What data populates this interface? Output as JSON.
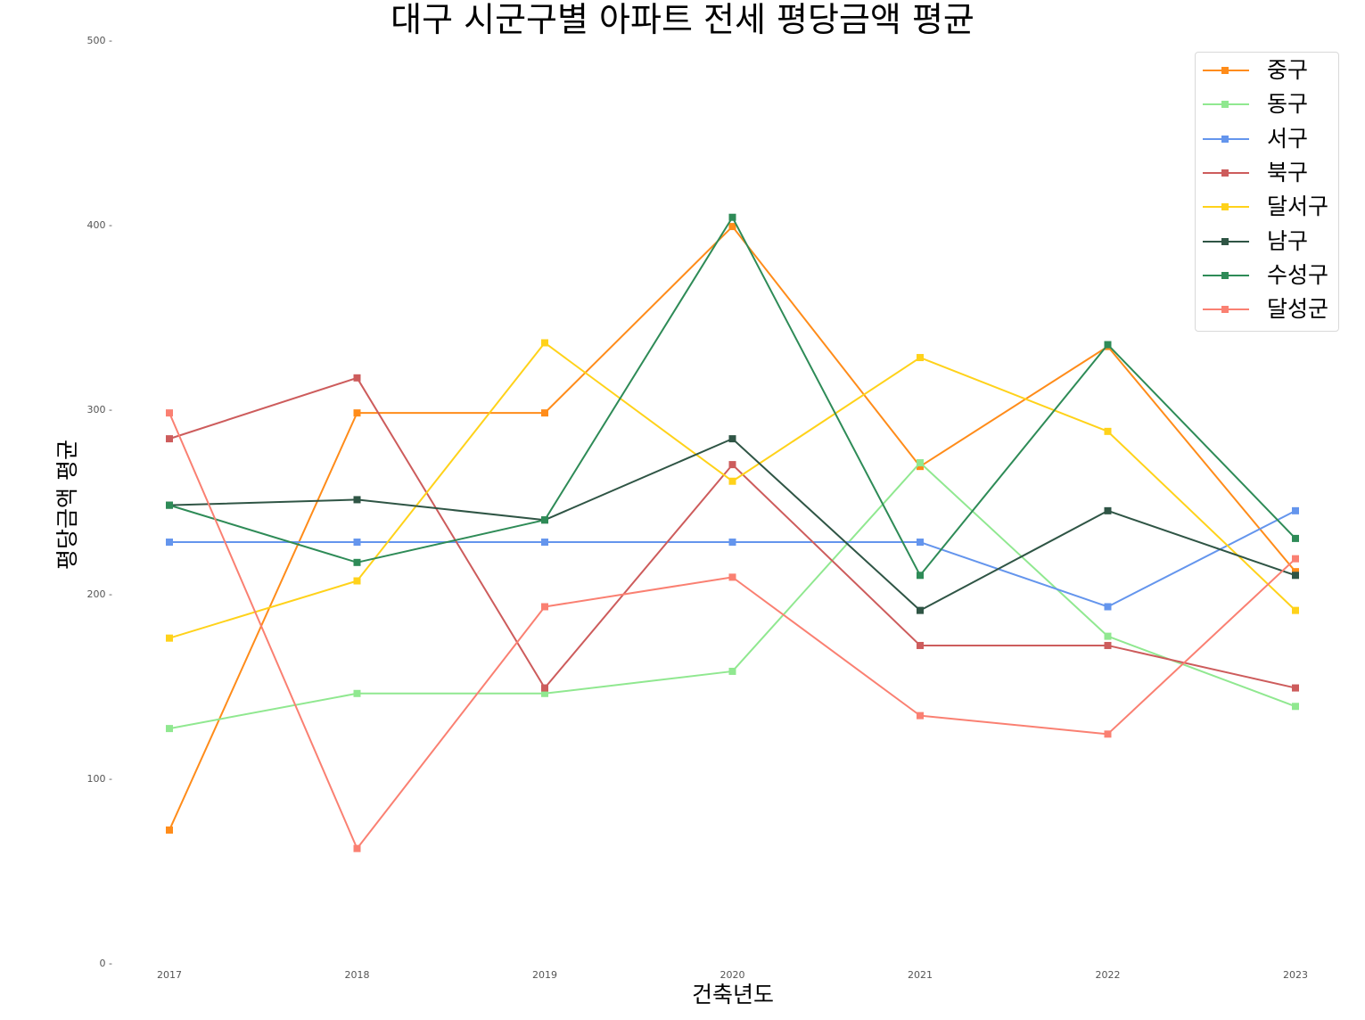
{
  "chart_data": {
    "type": "line",
    "title": "대구 시군구별 아파트 전세 평당금액 평균",
    "xlabel": "건축년도",
    "ylabel": "평당금액 평균",
    "x": [
      2017,
      2018,
      2019,
      2020,
      2021,
      2022,
      2023
    ],
    "xtick_labels": [
      "2017",
      "2018",
      "2019",
      "2020",
      "2021",
      "2022",
      "2023"
    ],
    "yticks": [
      0,
      100,
      200,
      300,
      400,
      500
    ],
    "ytick_labels": [
      "0 -",
      "100 -",
      "200 -",
      "300 -",
      "400 -",
      "500 -"
    ],
    "ylim": [
      0,
      500
    ],
    "grid": false,
    "legend_position": "top-right",
    "series": [
      {
        "name": "중구",
        "color": "#ff8c1a",
        "values": [
          72,
          298,
          298,
          399,
          269,
          334,
          212
        ]
      },
      {
        "name": "동구",
        "color": "#90e890",
        "values": [
          127,
          146,
          146,
          158,
          271,
          177,
          139
        ]
      },
      {
        "name": "서구",
        "color": "#6495ed",
        "values": [
          228,
          228,
          228,
          228,
          228,
          193,
          245
        ]
      },
      {
        "name": "북구",
        "color": "#cd5c5c",
        "values": [
          284,
          317,
          149,
          270,
          172,
          172,
          149
        ]
      },
      {
        "name": "달서구",
        "color": "#ffd21a",
        "values": [
          176,
          207,
          336,
          261,
          328,
          288,
          191
        ]
      },
      {
        "name": "남구",
        "color": "#2f5545",
        "values": [
          248,
          251,
          240,
          284,
          191,
          245,
          210
        ]
      },
      {
        "name": "수성구",
        "color": "#2e8b57",
        "values": [
          248,
          217,
          240,
          404,
          210,
          335,
          230
        ]
      },
      {
        "name": "달성군",
        "color": "#fa8072",
        "values": [
          298,
          62,
          193,
          209,
          134,
          124,
          219
        ]
      }
    ]
  }
}
